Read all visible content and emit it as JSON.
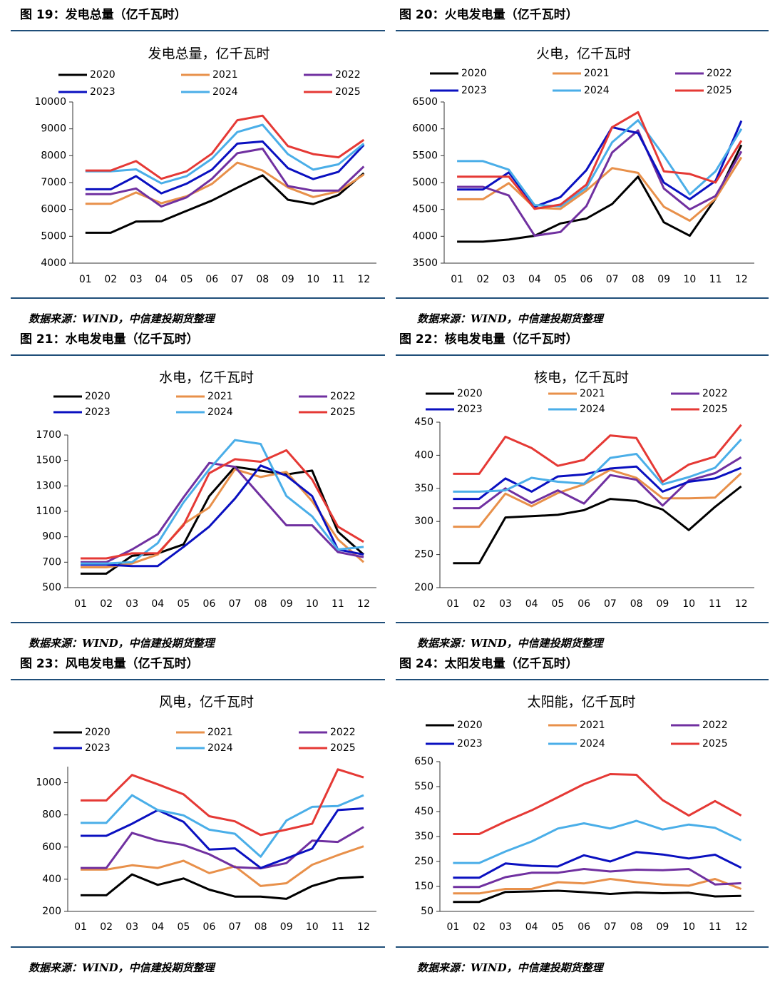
{
  "chart_data": [
    {
      "type": "line",
      "caption": "图 19：发电总量（亿千瓦时）",
      "title": "发电总量，亿千瓦时",
      "source": "数据来源：WIND，中信建投期货整理",
      "categories": [
        "01",
        "02",
        "03",
        "04",
        "05",
        "06",
        "07",
        "08",
        "09",
        "10",
        "11",
        "12"
      ],
      "ylim": [
        4000,
        10000
      ],
      "yticks": [
        4000,
        5000,
        6000,
        7000,
        8000,
        9000,
        10000
      ],
      "series": [
        {
          "name": "2020",
          "color": "#000000",
          "values": [
            5130,
            5130,
            5550,
            5560,
            5950,
            6330,
            6810,
            7270,
            6360,
            6200,
            6540,
            7350
          ]
        },
        {
          "name": "2021",
          "color": "#e8904a",
          "values": [
            6210,
            6210,
            6630,
            6230,
            6490,
            6950,
            7740,
            7450,
            6820,
            6460,
            6670,
            7300
          ]
        },
        {
          "name": "2022",
          "color": "#7030a0",
          "values": [
            6570,
            6570,
            6780,
            6110,
            6450,
            7140,
            8090,
            8260,
            6870,
            6700,
            6700,
            7600
          ]
        },
        {
          "name": "2023",
          "color": "#0a10c0",
          "values": [
            6750,
            6750,
            7240,
            6600,
            6960,
            7480,
            8450,
            8530,
            7540,
            7130,
            7400,
            8400
          ]
        },
        {
          "name": "2024",
          "color": "#4aaee8",
          "values": [
            7420,
            7420,
            7490,
            6970,
            7240,
            7890,
            8880,
            9150,
            8060,
            7480,
            7680,
            8450
          ]
        },
        {
          "name": "2025",
          "color": "#e53935",
          "values": [
            7450,
            7450,
            7800,
            7140,
            7420,
            8080,
            9320,
            9490,
            8360,
            8060,
            7940,
            8590
          ]
        }
      ]
    },
    {
      "type": "line",
      "caption": "图 20：火电发电量（亿千瓦时）",
      "title": "火电，亿千瓦时",
      "source": "数据来源：WIND，中信建投期货整理",
      "categories": [
        "01",
        "02",
        "03",
        "04",
        "05",
        "06",
        "07",
        "08",
        "09",
        "10",
        "11",
        "12"
      ],
      "ylim": [
        3500,
        6500
      ],
      "yticks": [
        3500,
        4000,
        4500,
        5000,
        5500,
        6000,
        6500
      ],
      "series": [
        {
          "name": "2020",
          "color": "#000000",
          "values": [
            3900,
            3900,
            3940,
            4010,
            4240,
            4330,
            4600,
            5110,
            4260,
            4010,
            4700,
            5700
          ]
        },
        {
          "name": "2021",
          "color": "#e8904a",
          "values": [
            4690,
            4690,
            4990,
            4530,
            4510,
            4850,
            5270,
            5180,
            4550,
            4290,
            4700,
            5470
          ]
        },
        {
          "name": "2022",
          "color": "#7030a0",
          "values": [
            4920,
            4920,
            4760,
            4010,
            4080,
            4560,
            5560,
            5970,
            4890,
            4500,
            4750,
            5580
          ]
        },
        {
          "name": "2023",
          "color": "#0a10c0",
          "values": [
            4870,
            4870,
            5190,
            4550,
            4730,
            5230,
            6030,
            5920,
            5000,
            4690,
            5030,
            6150
          ]
        },
        {
          "name": "2024",
          "color": "#4aaee8",
          "values": [
            5400,
            5400,
            5240,
            4580,
            4560,
            4900,
            5750,
            6160,
            5500,
            4780,
            5210,
            6000
          ]
        },
        {
          "name": "2025",
          "color": "#e53935",
          "values": [
            5110,
            5110,
            5110,
            4510,
            4590,
            4960,
            6030,
            6310,
            5210,
            5160,
            5000,
            5780
          ]
        }
      ]
    },
    {
      "type": "line",
      "caption": "图 21：水电发电量（亿千瓦时）",
      "title": "水电，亿千瓦时",
      "source": "数据来源：WIND，中信建投期货整理",
      "categories": [
        "01",
        "02",
        "03",
        "04",
        "05",
        "06",
        "07",
        "08",
        "09",
        "10",
        "11",
        "12"
      ],
      "ylim": [
        500,
        1700
      ],
      "yticks": [
        500,
        700,
        900,
        1100,
        1300,
        1500,
        1700
      ],
      "series": [
        {
          "name": "2020",
          "color": "#000000",
          "values": [
            610,
            610,
            750,
            770,
            840,
            1220,
            1450,
            1420,
            1390,
            1420,
            940,
            760
          ]
        },
        {
          "name": "2021",
          "color": "#e8904a",
          "values": [
            660,
            660,
            690,
            760,
            1000,
            1130,
            1430,
            1370,
            1410,
            1180,
            880,
            700
          ]
        },
        {
          "name": "2022",
          "color": "#7030a0",
          "values": [
            700,
            700,
            800,
            920,
            1210,
            1480,
            1450,
            1220,
            990,
            990,
            780,
            740
          ]
        },
        {
          "name": "2023",
          "color": "#0a10c0",
          "values": [
            680,
            680,
            670,
            670,
            820,
            980,
            1200,
            1460,
            1380,
            1220,
            800,
            760
          ]
        },
        {
          "name": "2024",
          "color": "#4aaee8",
          "values": [
            690,
            690,
            700,
            850,
            1170,
            1430,
            1660,
            1630,
            1220,
            1060,
            800,
            820
          ]
        },
        {
          "name": "2025",
          "color": "#e53935",
          "values": [
            730,
            730,
            770,
            770,
            990,
            1400,
            1510,
            1490,
            1580,
            1350,
            980,
            860
          ]
        }
      ]
    },
    {
      "type": "line",
      "caption": "图 22：核电发电量（亿千瓦时）",
      "title": "核电，亿千瓦时",
      "source": "数据来源：WIND，中信建投期货整理",
      "categories": [
        "01",
        "02",
        "03",
        "04",
        "05",
        "06",
        "07",
        "08",
        "09",
        "10",
        "11",
        "12"
      ],
      "ylim": [
        200,
        450
      ],
      "yticks": [
        200,
        250,
        300,
        350,
        400,
        450
      ],
      "series": [
        {
          "name": "2020",
          "color": "#000000",
          "values": [
            237,
            237,
            306,
            308,
            310,
            317,
            334,
            331,
            318,
            287,
            322,
            353
          ]
        },
        {
          "name": "2021",
          "color": "#e8904a",
          "values": [
            292,
            292,
            342,
            323,
            343,
            356,
            378,
            366,
            335,
            335,
            336,
            373
          ]
        },
        {
          "name": "2022",
          "color": "#7030a0",
          "values": [
            320,
            320,
            350,
            328,
            347,
            327,
            370,
            363,
            324,
            362,
            373,
            397
          ]
        },
        {
          "name": "2023",
          "color": "#0a10c0",
          "values": [
            334,
            334,
            365,
            345,
            368,
            371,
            380,
            383,
            345,
            360,
            365,
            381
          ]
        },
        {
          "name": "2024",
          "color": "#4aaee8",
          "values": [
            345,
            345,
            347,
            366,
            360,
            357,
            396,
            402,
            356,
            367,
            381,
            424
          ]
        },
        {
          "name": "2025",
          "color": "#e53935",
          "values": [
            372,
            372,
            428,
            411,
            384,
            393,
            430,
            426,
            360,
            386,
            398,
            446
          ]
        }
      ]
    },
    {
      "type": "line",
      "caption": "图 23：风电发电量（亿千瓦时）",
      "title": "风电，亿千瓦时",
      "source": "数据来源：WIND，中信建投期货整理",
      "categories": [
        "01",
        "02",
        "03",
        "04",
        "05",
        "06",
        "07",
        "08",
        "09",
        "10",
        "11",
        "12"
      ],
      "ylim": [
        200,
        1100
      ],
      "yticks": [
        200,
        400,
        600,
        800,
        1000
      ],
      "series": [
        {
          "name": "2020",
          "color": "#000000",
          "values": [
            300,
            300,
            430,
            365,
            405,
            335,
            292,
            292,
            278,
            358,
            405,
            415
          ]
        },
        {
          "name": "2021",
          "color": "#e8904a",
          "values": [
            460,
            460,
            487,
            470,
            515,
            438,
            480,
            358,
            375,
            490,
            550,
            605
          ]
        },
        {
          "name": "2022",
          "color": "#7030a0",
          "values": [
            470,
            470,
            688,
            640,
            613,
            555,
            475,
            468,
            500,
            640,
            632,
            725
          ]
        },
        {
          "name": "2023",
          "color": "#0a10c0",
          "values": [
            670,
            670,
            745,
            830,
            757,
            585,
            592,
            470,
            530,
            590,
            830,
            840
          ]
        },
        {
          "name": "2024",
          "color": "#4aaee8",
          "values": [
            750,
            750,
            922,
            830,
            797,
            708,
            683,
            540,
            765,
            850,
            855,
            922
          ]
        },
        {
          "name": "2025",
          "color": "#e53935",
          "values": [
            890,
            890,
            1048,
            990,
            928,
            792,
            760,
            675,
            708,
            745,
            1083,
            1033
          ]
        }
      ]
    },
    {
      "type": "line",
      "caption": "图 24：太阳发电量（亿千瓦时）",
      "title": "太阳能，亿千瓦时",
      "source": "数据来源：WIND，中信建投期货整理",
      "categories": [
        "01",
        "02",
        "03",
        "04",
        "05",
        "06",
        "07",
        "08",
        "09",
        "10",
        "11",
        "12"
      ],
      "ylim": [
        50,
        650
      ],
      "yticks": [
        50,
        150,
        250,
        350,
        450,
        550,
        650
      ],
      "series": [
        {
          "name": "2020",
          "color": "#000000",
          "values": [
            88,
            88,
            128,
            130,
            133,
            127,
            120,
            126,
            123,
            125,
            110,
            112
          ]
        },
        {
          "name": "2021",
          "color": "#e8904a",
          "values": [
            122,
            122,
            140,
            140,
            167,
            162,
            180,
            167,
            158,
            153,
            180,
            140
          ]
        },
        {
          "name": "2022",
          "color": "#7030a0",
          "values": [
            148,
            148,
            187,
            205,
            205,
            220,
            210,
            217,
            215,
            220,
            158,
            163
          ]
        },
        {
          "name": "2023",
          "color": "#0a10c0",
          "values": [
            185,
            185,
            242,
            233,
            230,
            275,
            250,
            288,
            278,
            262,
            277,
            225
          ]
        },
        {
          "name": "2024",
          "color": "#4aaee8",
          "values": [
            244,
            244,
            290,
            330,
            382,
            403,
            382,
            413,
            378,
            398,
            385,
            335
          ]
        },
        {
          "name": "2025",
          "color": "#e53935",
          "values": [
            360,
            360,
            410,
            455,
            507,
            560,
            600,
            597,
            496,
            434,
            492,
            434
          ]
        }
      ]
    }
  ]
}
